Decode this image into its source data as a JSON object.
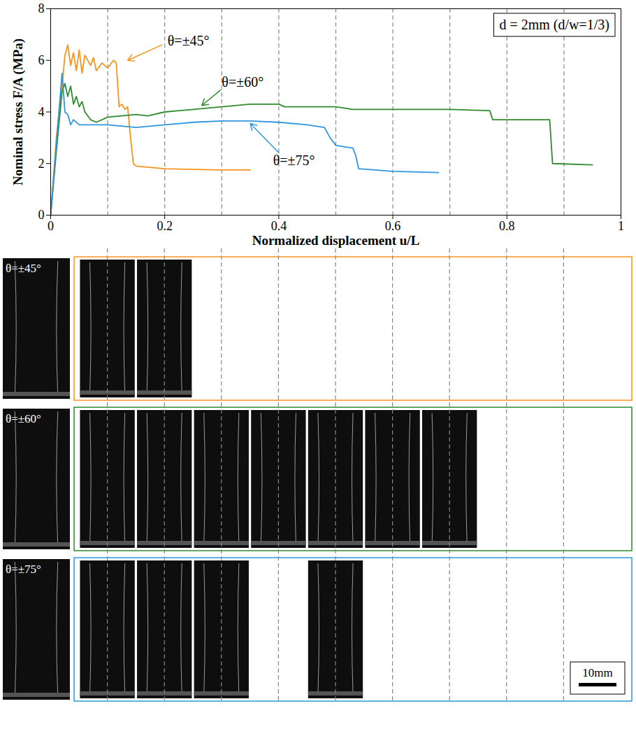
{
  "chart_data": {
    "type": "line",
    "x_label": "Normalized displacement u/L",
    "y_label": "Nominal stress F/A (MPa)",
    "annotation": "d = 2mm (d/w=1/3)",
    "xlim": [
      0,
      1
    ],
    "xticks": [
      0,
      0.2,
      0.4,
      0.6,
      0.8,
      1
    ],
    "ylim": [
      0,
      8
    ],
    "yticks": [
      0,
      2,
      4,
      6,
      8
    ],
    "snapshot_lines": [
      0.1,
      0.2,
      0.3,
      0.4,
      0.5,
      0.6,
      0.7,
      0.8,
      0.9
    ],
    "series": [
      {
        "name": "θ=±45°",
        "color": "#f7941d",
        "x": [
          0,
          0.01,
          0.02,
          0.025,
          0.03,
          0.035,
          0.04,
          0.045,
          0.05,
          0.055,
          0.06,
          0.07,
          0.075,
          0.08,
          0.09,
          0.1,
          0.11,
          0.115,
          0.12,
          0.125,
          0.13,
          0.135,
          0.14,
          0.145,
          0.15,
          0.2,
          0.3,
          0.35
        ],
        "values": [
          0,
          3,
          5,
          6.2,
          6.6,
          5.8,
          6.3,
          5.6,
          6.4,
          5.5,
          6.2,
          5.8,
          6.1,
          5.6,
          5.9,
          5.7,
          6.0,
          5.9,
          4.2,
          4.3,
          4.1,
          4.2,
          3.0,
          2.0,
          1.9,
          1.8,
          1.75,
          1.75
        ],
        "label_at": [
          0.205,
          6.75
        ],
        "arrow": [
          0.195,
          6.6,
          0.135,
          6.0
        ]
      },
      {
        "name": "θ=±60°",
        "color": "#2e8b2e",
        "x": [
          0,
          0.01,
          0.02,
          0.025,
          0.03,
          0.035,
          0.04,
          0.045,
          0.05,
          0.055,
          0.06,
          0.07,
          0.08,
          0.1,
          0.15,
          0.17,
          0.2,
          0.25,
          0.3,
          0.35,
          0.4,
          0.41,
          0.5,
          0.53,
          0.6,
          0.7,
          0.77,
          0.775,
          0.8,
          0.875,
          0.88,
          0.95
        ],
        "values": [
          0,
          2.5,
          4.8,
          5.1,
          4.6,
          5.0,
          4.3,
          4.6,
          4.2,
          4.4,
          4.0,
          3.7,
          3.6,
          3.8,
          3.9,
          3.85,
          4.0,
          4.1,
          4.2,
          4.3,
          4.3,
          4.2,
          4.2,
          4.1,
          4.1,
          4.1,
          4.05,
          3.7,
          3.7,
          3.7,
          2.0,
          1.95
        ],
        "label_at": [
          0.3,
          5.15
        ],
        "arrow": [
          0.298,
          4.85,
          0.265,
          4.25
        ]
      },
      {
        "name": "θ=±75°",
        "color": "#2f96e0",
        "x": [
          0,
          0.01,
          0.02,
          0.025,
          0.03,
          0.035,
          0.04,
          0.05,
          0.1,
          0.15,
          0.2,
          0.25,
          0.3,
          0.35,
          0.4,
          0.45,
          0.48,
          0.49,
          0.5,
          0.53,
          0.535,
          0.54,
          0.6,
          0.68
        ],
        "values": [
          0,
          2.8,
          5.5,
          4.0,
          3.9,
          3.5,
          3.7,
          3.5,
          3.5,
          3.4,
          3.5,
          3.6,
          3.65,
          3.65,
          3.6,
          3.5,
          3.4,
          3.0,
          2.7,
          2.6,
          2.3,
          1.8,
          1.7,
          1.65
        ],
        "label_at": [
          0.39,
          2.1
        ],
        "arrow": [
          0.4,
          2.42,
          0.35,
          3.55
        ]
      }
    ],
    "panels": [
      {
        "label": "θ=±45°",
        "snapshot_u": [
          0.1,
          0.2
        ]
      },
      {
        "label": "θ=±60°",
        "snapshot_u": [
          0.1,
          0.2,
          0.3,
          0.4,
          0.5,
          0.6,
          0.7
        ]
      },
      {
        "label": "θ=±75°",
        "snapshot_u": [
          0.1,
          0.2,
          0.3,
          0.5
        ]
      }
    ],
    "scale_bar": "10mm"
  }
}
